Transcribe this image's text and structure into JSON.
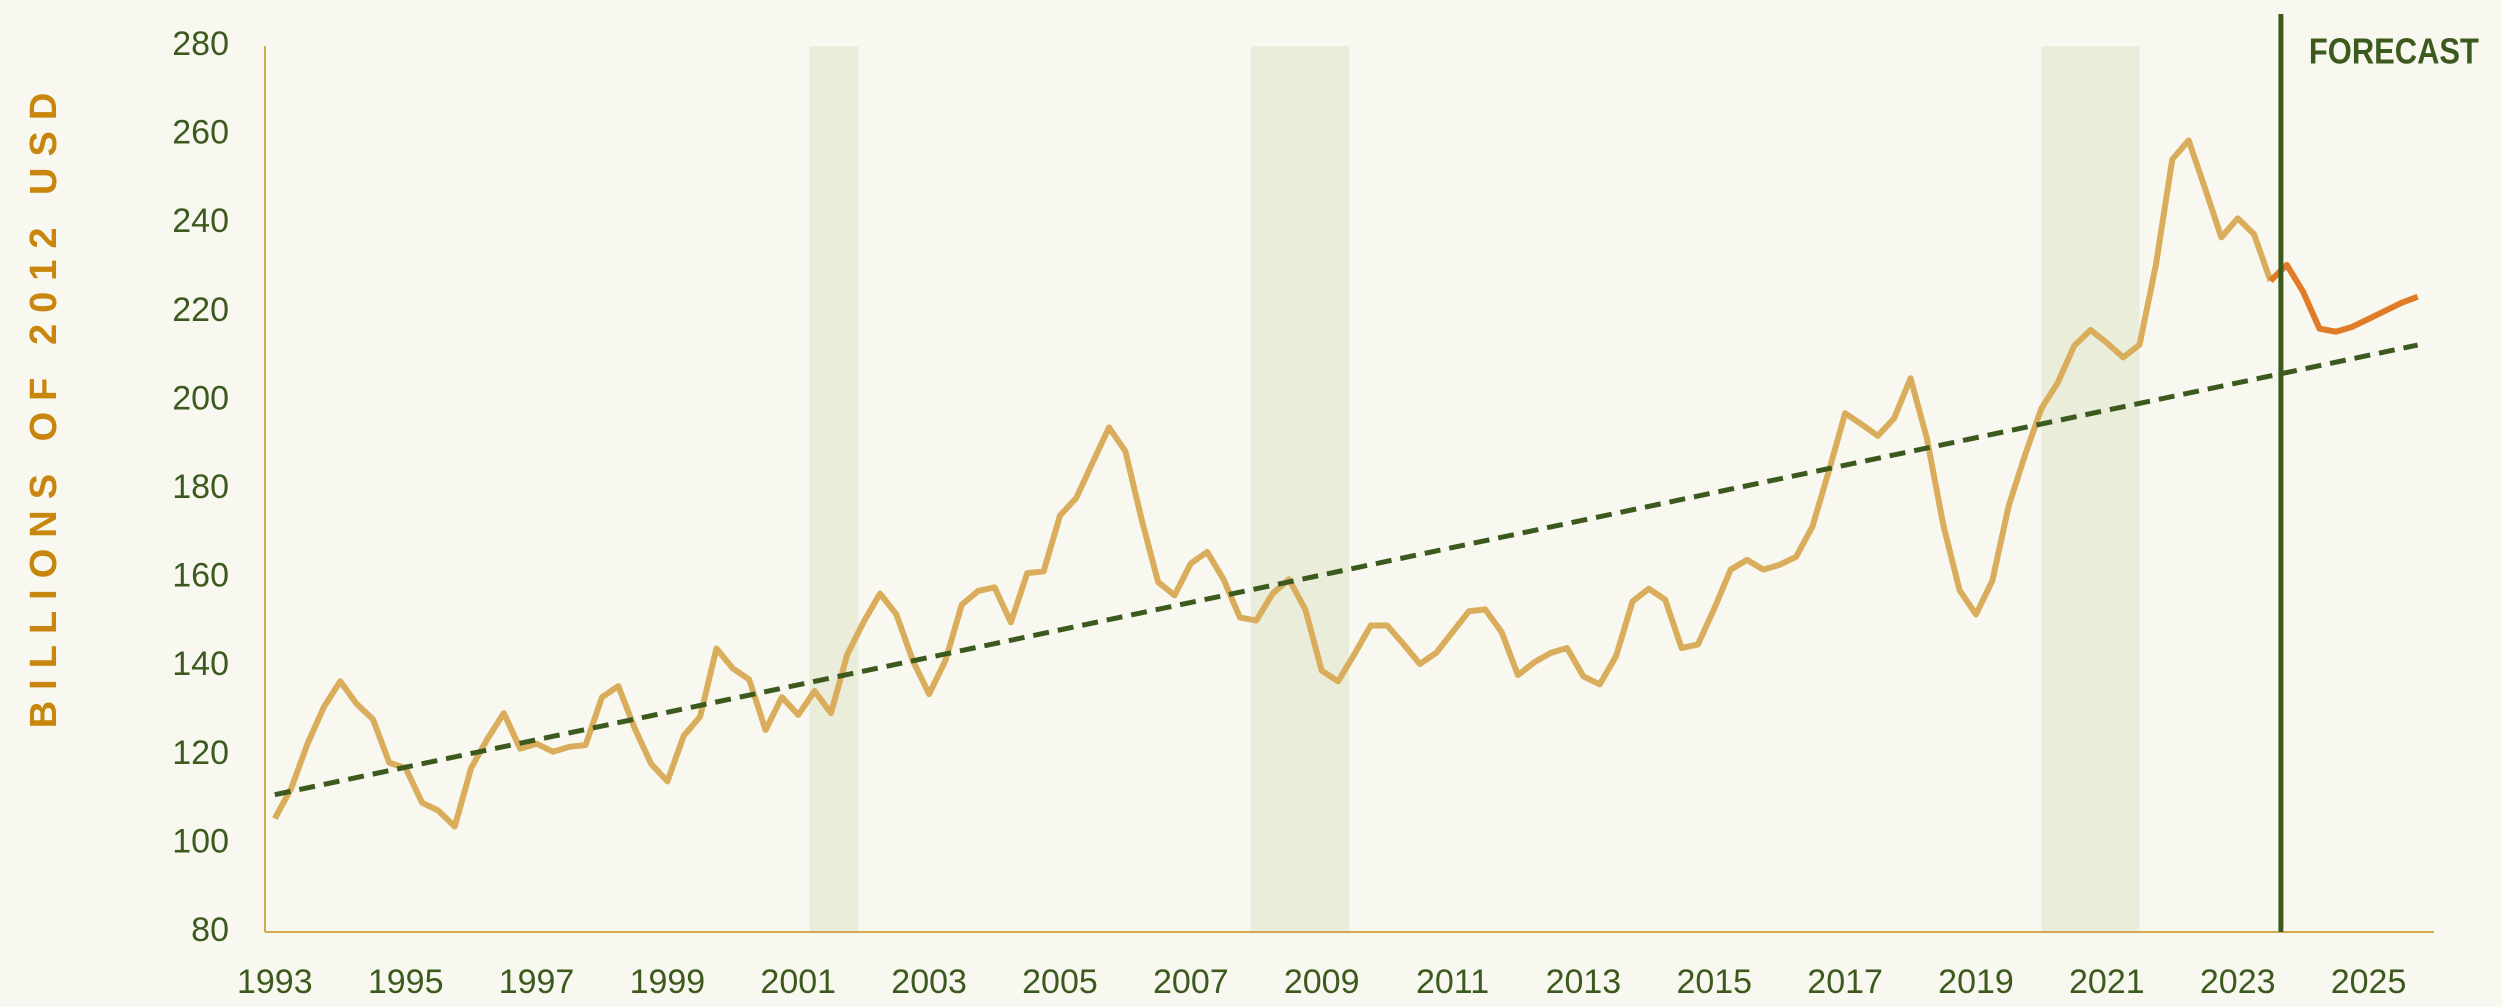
{
  "chart_data": {
    "type": "line",
    "y_label": "BILLIONS OF 2012 USD",
    "xlim": [
      1992.85,
      2026.0
    ],
    "ylim": [
      80,
      280
    ],
    "xticks": [
      1993,
      1995,
      1997,
      1999,
      2001,
      2003,
      2005,
      2007,
      2009,
      2011,
      2013,
      2015,
      2017,
      2019,
      2021,
      2023,
      2025
    ],
    "yticks": [
      80,
      100,
      120,
      140,
      160,
      180,
      200,
      220,
      240,
      260,
      280
    ],
    "shaded_regions": [
      [
        2001.17,
        2001.92
      ],
      [
        2007.92,
        2009.42
      ],
      [
        2020.0,
        2021.5
      ]
    ],
    "shade_color": "#e9edd9",
    "forecast_line": {
      "x": 2023.66,
      "label": "FORECAST",
      "color": "#3d5a1e"
    },
    "series": [
      {
        "color": "#d9ad5c",
        "x": [
          1993,
          1993.25,
          1993.5,
          1993.75,
          1994,
          1994.25,
          1994.5,
          1994.75,
          1995,
          1995.25,
          1995.5,
          1995.75,
          1996,
          1996.25,
          1996.5,
          1996.75,
          1997,
          1997.25,
          1997.5,
          1997.75,
          1998,
          1998.25,
          1998.5,
          1998.75,
          1999,
          1999.25,
          1999.5,
          1999.75,
          2000,
          2000.25,
          2000.5,
          2000.75,
          2001,
          2001.25,
          2001.5,
          2001.75,
          2002,
          2002.25,
          2002.5,
          2002.75,
          2003,
          2003.25,
          2003.5,
          2003.75,
          2004,
          2004.25,
          2004.5,
          2004.75,
          2005,
          2005.25,
          2005.5,
          2005.75,
          2006,
          2006.25,
          2006.5,
          2006.75,
          2007,
          2007.25,
          2007.5,
          2007.75,
          2008,
          2008.25,
          2008.5,
          2008.75,
          2009,
          2009.25,
          2009.5,
          2009.75,
          2010,
          2010.25,
          2010.5,
          2010.75,
          2011,
          2011.25,
          2011.5,
          2011.75,
          2012,
          2012.25,
          2012.5,
          2012.75,
          2013,
          2013.25,
          2013.5,
          2013.75,
          2014,
          2014.25,
          2014.5,
          2014.75,
          2015,
          2015.25,
          2015.5,
          2015.75,
          2016,
          2016.25,
          2016.5,
          2016.75,
          2017,
          2017.25,
          2017.5,
          2017.75,
          2018,
          2018.25,
          2018.5,
          2018.75,
          2019,
          2019.25,
          2019.5,
          2019.75,
          2020,
          2020.25,
          2020.5,
          2020.75,
          2021,
          2021.25,
          2021.5,
          2021.75,
          2022,
          2022.25,
          2022.5,
          2022.75,
          2023,
          2023.25,
          2023.5
        ],
        "values": [
          105.6,
          112.4,
          122.5,
          130.8,
          136.6,
          131.5,
          128,
          118.2,
          117,
          109.2,
          107.4,
          103.8,
          117,
          123.6,
          129.4,
          121.4,
          122.5,
          120.7,
          121.8,
          122.2,
          133,
          135.5,
          126,
          118,
          114,
          124.3,
          128.6,
          144,
          139.5,
          137,
          125.6,
          133,
          129,
          134.4,
          129.4,
          142.7,
          150,
          156.4,
          151.7,
          141.3,
          133.7,
          141.3,
          153.9,
          157,
          157.8,
          149.9,
          161,
          161.4,
          174,
          178,
          186,
          193.9,
          188.5,
          173,
          159,
          156,
          163.2,
          165.8,
          159.6,
          151,
          150.3,
          156.4,
          159.6,
          152.8,
          139,
          136.6,
          142.7,
          149.2,
          149.2,
          145,
          140.5,
          143,
          147.7,
          152.4,
          152.8,
          147.7,
          138,
          140.9,
          143,
          144.1,
          137.7,
          135.9,
          142.3,
          154.6,
          157.5,
          155,
          144.1,
          144.9,
          153,
          161.8,
          164,
          161.8,
          162.9,
          164.7,
          171.5,
          184,
          197.1,
          194.6,
          192,
          196,
          205,
          191.4,
          171.9,
          157.1,
          151.7,
          159.3,
          176.2,
          187.7,
          198.2,
          204,
          212.3,
          215.9,
          213,
          209.7,
          212.6,
          230.6,
          254.4,
          258.7,
          247.9,
          236.8,
          241.1,
          237.5,
          227
        ]
      },
      {
        "color": "#e07b28",
        "x": [
          2023.5,
          2023.75,
          2024,
          2024.25,
          2024.5,
          2024.75,
          2025,
          2025.25,
          2025.5,
          2025.75
        ],
        "values": [
          227,
          230.6,
          224.5,
          216.2,
          215.5,
          216.6,
          218.4,
          220.2,
          222,
          223.4
        ]
      },
      {
        "color": "#3d5a1e",
        "dashed": true,
        "x": [
          1993,
          2025.75
        ],
        "values": [
          111,
          212.5
        ]
      }
    ]
  }
}
